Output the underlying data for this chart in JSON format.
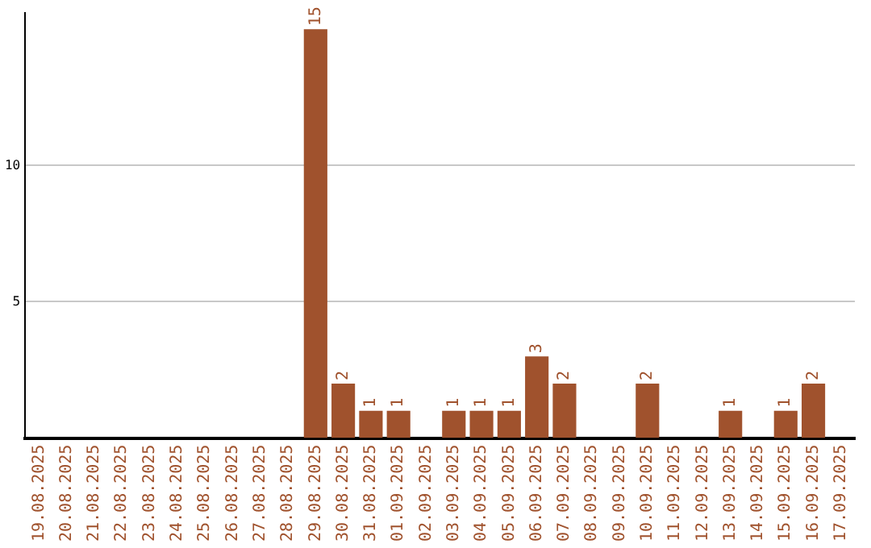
{
  "chart_data": {
    "type": "bar",
    "categories": [
      "19.08.2025",
      "20.08.2025",
      "21.08.2025",
      "22.08.2025",
      "23.08.2025",
      "24.08.2025",
      "25.08.2025",
      "26.08.2025",
      "27.08.2025",
      "28.08.2025",
      "29.08.2025",
      "30.08.2025",
      "31.08.2025",
      "01.09.2025",
      "02.09.2025",
      "03.09.2025",
      "04.09.2025",
      "05.09.2025",
      "06.09.2025",
      "07.09.2025",
      "08.09.2025",
      "09.09.2025",
      "10.09.2025",
      "11.09.2025",
      "12.09.2025",
      "13.09.2025",
      "14.09.2025",
      "15.09.2025",
      "16.09.2025",
      "17.09.2025"
    ],
    "values": [
      0,
      0,
      0,
      0,
      0,
      0,
      0,
      0,
      0,
      0,
      15,
      2,
      1,
      1,
      0,
      1,
      1,
      1,
      3,
      2,
      0,
      0,
      2,
      0,
      0,
      1,
      0,
      1,
      2,
      0
    ],
    "value_labels": [
      null,
      null,
      null,
      null,
      null,
      null,
      null,
      null,
      null,
      null,
      "15",
      "2",
      "1",
      "1",
      null,
      "1",
      "1",
      "1",
      "3",
      "2",
      null,
      null,
      "2",
      null,
      null,
      "1",
      null,
      "1",
      "2",
      null
    ],
    "color": "#a0522d",
    "ylim": [
      0,
      15.6
    ],
    "yticks": [
      5,
      10
    ],
    "grid": "y",
    "legend": false
  }
}
